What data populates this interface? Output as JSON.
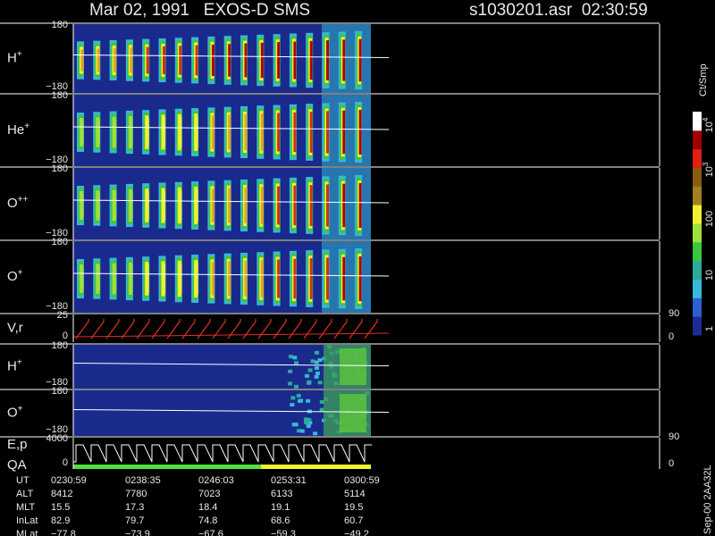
{
  "header": {
    "title": "Mar 02, 1991   EXOS-D SMS",
    "file": "s1030201.asr  02:30:59"
  },
  "panels": [
    {
      "label": {
        "name": "H",
        "charge": "+"
      },
      "left_ticks": [
        "180",
        "−180"
      ]
    },
    {
      "label": {
        "name": "He",
        "charge": "+"
      },
      "left_ticks": [
        "180",
        "−180"
      ]
    },
    {
      "label": {
        "name": "O",
        "charge": "++"
      },
      "left_ticks": [
        "180",
        "−180"
      ]
    },
    {
      "label": {
        "name": "O",
        "charge": "+"
      },
      "left_ticks": [
        "180",
        "−180"
      ]
    },
    {
      "label": {
        "name": "V,r"
      },
      "left_ticks": [
        "25",
        "0"
      ],
      "right_ticks": [
        "90",
        "0"
      ]
    },
    {
      "label": {
        "name": "H",
        "charge": "+"
      },
      "left_ticks": [
        "180",
        "−180"
      ]
    },
    {
      "label": {
        "name": "O",
        "charge": "+"
      },
      "left_ticks": [
        "180",
        "−180"
      ]
    },
    {
      "label": {
        "name": "E,p"
      },
      "label2": "QA",
      "left_ticks": [
        "4000",
        "0"
      ],
      "right_ticks": [
        "90",
        "0"
      ]
    }
  ],
  "colorbar": {
    "title": "Ct/Smp",
    "ticks": [
      {
        "base": "10",
        "exp": "4"
      },
      {
        "base": "10",
        "exp": "3"
      },
      "100",
      "10",
      "1"
    ]
  },
  "ephemeris": {
    "rows": [
      {
        "label": "UT",
        "values": [
          "0230:59",
          "0238:35",
          "0246:03",
          "0253:31",
          "0300:59"
        ]
      },
      {
        "label": "ALT",
        "values": [
          "8412",
          "7780",
          "7023",
          "6133",
          "5114"
        ]
      },
      {
        "label": "MLT",
        "values": [
          "15.5",
          "17.3",
          "18.4",
          "19.1",
          "19.5"
        ]
      },
      {
        "label": "InLat",
        "values": [
          "82.9",
          "79.7",
          "74.8",
          "68.6",
          "60.7"
        ]
      },
      {
        "label": "MLat",
        "values": [
          "−77.8",
          "−73.9",
          "−67.6",
          "−59.3",
          "−49.2"
        ]
      }
    ]
  },
  "footer": "Sep-00 2AA32L"
}
